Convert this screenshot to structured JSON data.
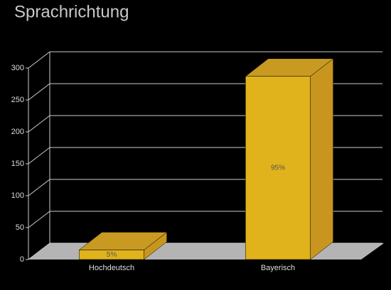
{
  "chart_data": {
    "type": "bar3d",
    "title": "Sprachrichtung",
    "categories": [
      "Hochdeutsch",
      "Bayerisch"
    ],
    "values": [
      15,
      287
    ],
    "data_labels": [
      "5%",
      "95%"
    ],
    "color": "#e0b31c",
    "ylim": [
      0,
      300
    ],
    "yticks": [
      0,
      50,
      100,
      150,
      200,
      250,
      300
    ],
    "grid": true
  }
}
